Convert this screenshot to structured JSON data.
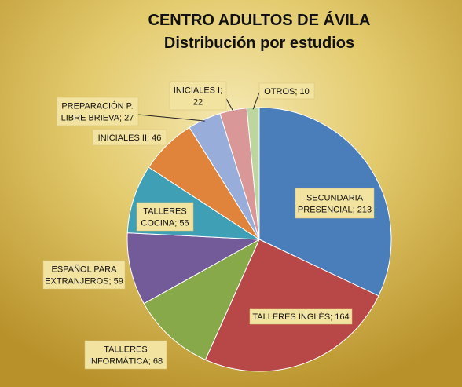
{
  "chart_data": {
    "type": "pie",
    "title": "CENTRO ADULTOS DE ÁVILA",
    "subtitle": "Distribución por estudios",
    "slices": [
      {
        "label_lines": [
          "SECUNDARIA",
          "PRESENCIAL; 213"
        ],
        "category": "SECUNDARIA PRESENCIAL",
        "value": 213,
        "color": "#4a7ebb"
      },
      {
        "label_lines": [
          "TALLERES INGLÉS; 164"
        ],
        "category": "TALLERES INGLÉS",
        "value": 164,
        "color": "#b84747"
      },
      {
        "label_lines": [
          "TALLERES",
          "INFORMÁTICA; 68"
        ],
        "category": "TALLERES INFORMÁTICA",
        "value": 68,
        "color": "#88a94a"
      },
      {
        "label_lines": [
          "ESPAÑOL PARA",
          "EXTRANJEROS; 59"
        ],
        "category": "ESPAÑOL PARA EXTRANJEROS",
        "value": 59,
        "color": "#735a99"
      },
      {
        "label_lines": [
          "TALLERES",
          "COCINA; 56"
        ],
        "category": "TALLERES COCINA",
        "value": 56,
        "color": "#3fa0b5"
      },
      {
        "label_lines": [
          "INICIALES II; 46"
        ],
        "category": "INICIALES II",
        "value": 46,
        "color": "#e0843c"
      },
      {
        "label_lines": [
          "PREPARACIÓN P.",
          "LIBRE BRIEVA; 27"
        ],
        "category": "PREPARACIÓN P. LIBRE BRIEVA",
        "value": 27,
        "color": "#98add9"
      },
      {
        "label_lines": [
          "INICIALES I;",
          "22"
        ],
        "category": "INICIALES I",
        "value": 22,
        "color": "#d99897"
      },
      {
        "label_lines": [
          "OTROS; 10"
        ],
        "category": "OTROS",
        "value": 10,
        "color": "#bdd6a0"
      }
    ],
    "legend": "none",
    "colors": {
      "background_light": "#f2e3a6",
      "background_dark": "#b8912a",
      "label_box": "#f3e3a0"
    }
  }
}
